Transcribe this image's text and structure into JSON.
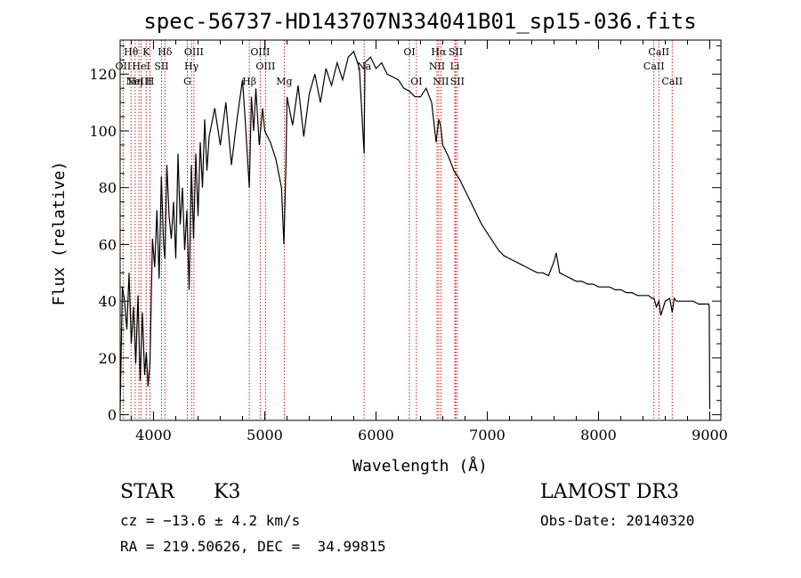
{
  "chart_data": {
    "type": "line",
    "title": "spec-56737-HD143707N334041B01_sp15-036.fits",
    "xlabel": "Wavelength (Å)",
    "ylabel": "Flux (relative)",
    "xlim": [
      3700,
      9100
    ],
    "ylim": [
      -2,
      132
    ],
    "xticks": [
      4000,
      5000,
      6000,
      7000,
      8000,
      9000
    ],
    "yticks": [
      0,
      20,
      40,
      60,
      80,
      100,
      120
    ],
    "series": [
      {
        "name": "flux",
        "x": [
          3700,
          3720,
          3740,
          3760,
          3780,
          3800,
          3820,
          3840,
          3860,
          3880,
          3900,
          3920,
          3935,
          3950,
          3968,
          3990,
          4010,
          4030,
          4050,
          4070,
          4090,
          4102,
          4120,
          4140,
          4160,
          4180,
          4200,
          4220,
          4240,
          4260,
          4280,
          4300,
          4320,
          4340,
          4360,
          4380,
          4400,
          4420,
          4440,
          4460,
          4480,
          4500,
          4550,
          4600,
          4650,
          4700,
          4750,
          4800,
          4830,
          4861,
          4880,
          4900,
          4920,
          4950,
          4980,
          5000,
          5050,
          5100,
          5150,
          5172,
          5190,
          5200,
          5250,
          5300,
          5350,
          5400,
          5450,
          5500,
          5550,
          5600,
          5650,
          5700,
          5750,
          5800,
          5850,
          5893,
          5900,
          5950,
          6000,
          6050,
          6100,
          6150,
          6200,
          6250,
          6300,
          6350,
          6400,
          6450,
          6500,
          6540,
          6563,
          6580,
          6600,
          6650,
          6700,
          6750,
          6800,
          6850,
          6900,
          6950,
          7000,
          7050,
          7100,
          7150,
          7200,
          7250,
          7300,
          7350,
          7400,
          7450,
          7500,
          7550,
          7600,
          7620,
          7650,
          7700,
          7750,
          7800,
          7850,
          7900,
          7950,
          8000,
          8050,
          8100,
          8150,
          8200,
          8250,
          8300,
          8350,
          8400,
          8450,
          8480,
          8498,
          8520,
          8542,
          8560,
          8600,
          8640,
          8662,
          8680,
          8700,
          8750,
          8800,
          8850,
          8900,
          8950,
          8990,
          8995,
          9000
        ],
        "y": [
          2,
          45,
          40,
          30,
          50,
          25,
          38,
          18,
          42,
          12,
          36,
          14,
          22,
          10,
          18,
          62,
          52,
          72,
          48,
          84,
          60,
          55,
          88,
          70,
          62,
          75,
          55,
          92,
          67,
          80,
          58,
          72,
          44,
          88,
          62,
          92,
          70,
          96,
          80,
          104,
          86,
          98,
          108,
          95,
          110,
          88,
          104,
          118,
          100,
          80,
          112,
          100,
          115,
          95,
          108,
          100,
          96,
          90,
          80,
          60,
          88,
          112,
          102,
          116,
          98,
          113,
          120,
          110,
          122,
          116,
          124,
          118,
          126,
          128,
          122,
          92,
          124,
          126,
          122,
          124,
          120,
          119,
          118,
          115,
          114,
          112,
          112,
          115,
          110,
          96,
          104,
          102,
          95,
          91,
          86,
          83,
          79,
          75,
          71,
          67,
          64,
          61,
          58,
          56,
          55,
          54,
          53,
          52,
          51,
          50,
          50,
          49,
          54,
          57,
          50,
          49,
          48,
          47,
          47,
          46,
          46,
          45,
          45,
          45,
          44,
          44,
          43,
          43,
          42,
          42,
          42,
          41,
          41,
          38,
          40,
          35,
          40,
          41,
          36,
          41,
          40,
          40,
          40,
          40,
          39,
          39,
          39,
          38,
          2
        ]
      }
    ],
    "line_groups": [
      {
        "color": "#cc0000",
        "lines": [
          {
            "wave": 3798,
            "label": "Hθ",
            "row": 1
          },
          {
            "wave": 3835,
            "label": "Hη",
            "row": 3
          },
          {
            "wave": 3727,
            "label": "OII",
            "row": 2
          },
          {
            "wave": 3869,
            "label": "NeIII",
            "row": 3
          },
          {
            "wave": 3889,
            "label": "HeI",
            "row": 2
          },
          {
            "wave": 3934,
            "label": "K",
            "row": 1
          },
          {
            "wave": 3968,
            "label": "H",
            "row": 3
          },
          {
            "wave": 4072,
            "label": "SII",
            "row": 2
          },
          {
            "wave": 4102,
            "label": "Hδ",
            "row": 1
          },
          {
            "wave": 4304,
            "label": "G",
            "row": 3
          },
          {
            "wave": 4341,
            "label": "Hγ",
            "row": 2
          },
          {
            "wave": 4363,
            "label": "OIII",
            "row": 1
          },
          {
            "wave": 4861,
            "label": "Hβ",
            "row": 3
          },
          {
            "wave": 4959,
            "label": "OIII",
            "row": 1
          },
          {
            "wave": 5007,
            "label": "OIII",
            "row": 2
          },
          {
            "wave": 5175,
            "label": "Mg",
            "row": 3
          },
          {
            "wave": 5893,
            "label": "Na",
            "row": 2
          },
          {
            "wave": 6300,
            "label": "OI",
            "row": 1
          },
          {
            "wave": 6363,
            "label": "OI",
            "row": 3
          },
          {
            "wave": 6548,
            "label": "NII",
            "row": 2
          },
          {
            "wave": 6563,
            "label": "Hα",
            "row": 1
          },
          {
            "wave": 6583,
            "label": "NII",
            "row": 3
          },
          {
            "wave": 6708,
            "label": "Li",
            "row": 2
          },
          {
            "wave": 6716,
            "label": "SII",
            "row": 1
          },
          {
            "wave": 6731,
            "label": "SII",
            "row": 3
          },
          {
            "wave": 8498,
            "label": "CaII",
            "row": 2
          },
          {
            "wave": 8542,
            "label": "CaII",
            "row": 1
          },
          {
            "wave": 8662,
            "label": "CaII",
            "row": 3
          }
        ]
      }
    ]
  },
  "info": {
    "obj_class": "STAR",
    "obj_subclass": "K3",
    "survey": "LAMOST DR3",
    "cz": "cz = −13.6 ± 4.2 km/s",
    "obs_date": "Obs-Date: 20140320",
    "radec": "RA = 219.50626, DEC =  34.99815"
  }
}
